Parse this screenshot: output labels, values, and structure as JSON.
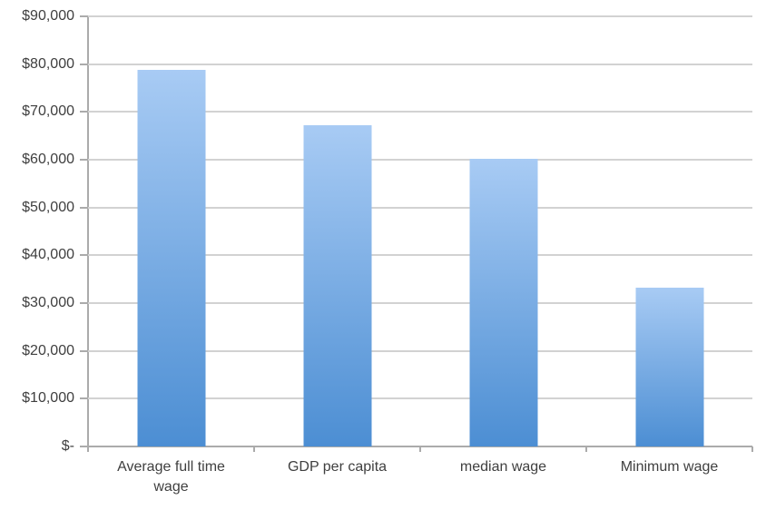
{
  "chart_data": {
    "type": "bar",
    "title": "",
    "xlabel": "",
    "ylabel": "",
    "categories": [
      "Average full time wage",
      "GDP per capita",
      "median wage",
      "Minimum wage"
    ],
    "values": [
      78800,
      67300,
      60200,
      33300
    ],
    "ylim": [
      0,
      90000
    ],
    "yticks": [
      0,
      10000,
      20000,
      30000,
      40000,
      50000,
      60000,
      70000,
      80000,
      90000
    ],
    "ytick_labels": [
      "$-",
      "$10,000",
      "$20,000",
      "$30,000",
      "$40,000",
      "$50,000",
      "$60,000",
      "$70,000",
      "$80,000",
      "$90,000"
    ],
    "grid": true,
    "legend": false,
    "colors": {
      "bar_gradient_top": "#a8cbf4",
      "bar_gradient_bottom": "#4c8ed3",
      "gridline": "#d2d2d2",
      "axis": "#ababab",
      "text": "#3f3f3f",
      "background": "#ffffff"
    }
  }
}
